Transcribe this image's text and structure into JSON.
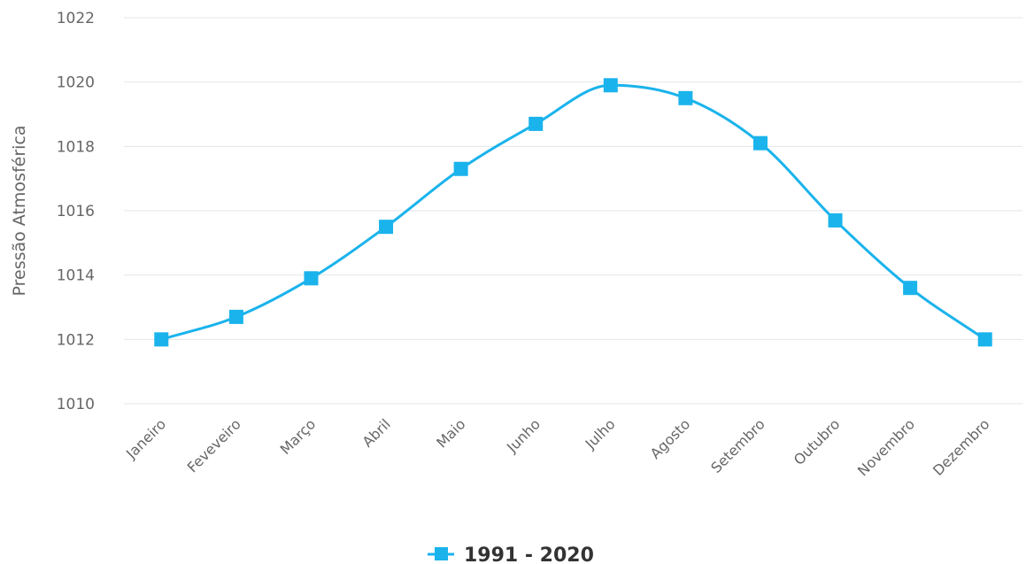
{
  "chart_data": {
    "type": "line",
    "categories": [
      "Janeiro",
      "Feveveiro",
      "Março",
      "Abril",
      "Maio",
      "Junho",
      "Julho",
      "Agosto",
      "Setembro",
      "Outubro",
      "Novembro",
      "Dezembro"
    ],
    "series": [
      {
        "name": "1991 - 2020",
        "values": [
          1012.0,
          1012.7,
          1013.9,
          1015.5,
          1017.3,
          1018.7,
          1019.9,
          1019.5,
          1018.1,
          1015.7,
          1013.6,
          1012.0
        ],
        "color": "#1ab3ec",
        "marker": "square"
      }
    ],
    "title": "",
    "xlabel": "",
    "ylabel": "Pressão Atmosférica",
    "ylim": [
      1010,
      1022
    ],
    "yticks": [
      1010,
      1012,
      1014,
      1016,
      1018,
      1020,
      1022
    ],
    "grid": true,
    "legend_position": "bottom-center"
  }
}
